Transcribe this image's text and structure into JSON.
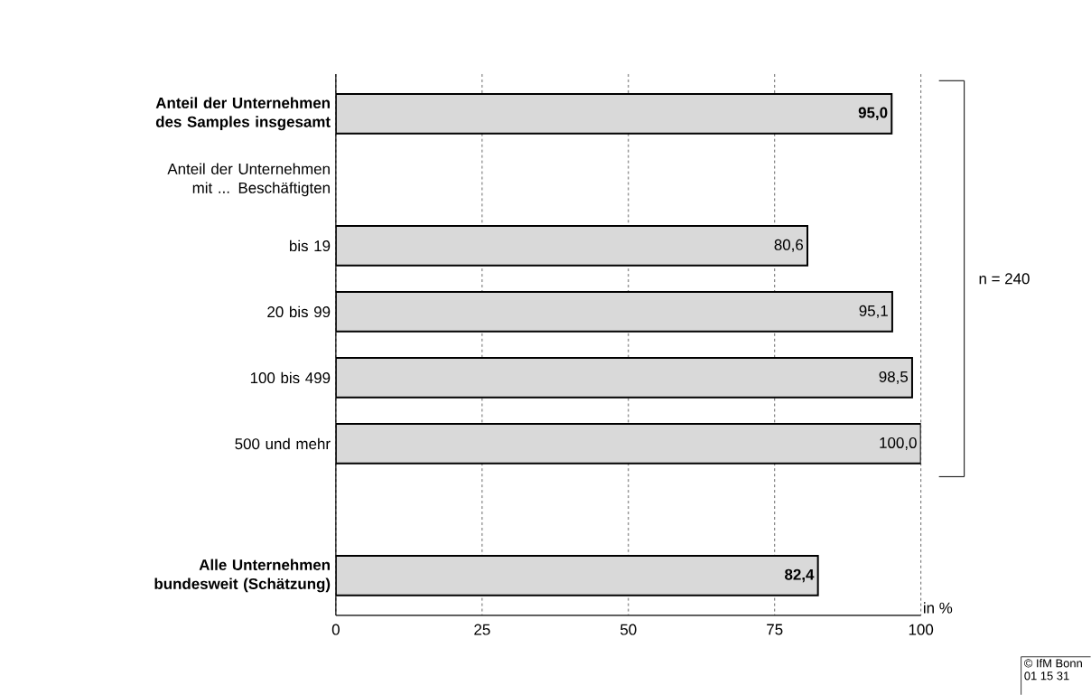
{
  "chart_data": {
    "type": "bar",
    "orientation": "horizontal",
    "categories": [
      "**Anteil der Unternehmen des Samples insgesamt**",
      "Anteil der Unternehmen mit ... Beschäftigten",
      "bis 19",
      "20 bis 99",
      "100 bis 499",
      "500 und mehr",
      null,
      "**Alle Unternehmen bundesweit (Schätzung)**"
    ],
    "values": [
      95.0,
      null,
      80.6,
      95.1,
      98.5,
      100.0,
      null,
      82.4
    ],
    "value_labels": [
      "**95,0**",
      null,
      "80,6",
      "95,1",
      "98,5",
      "100,0",
      null,
      "**82,4**"
    ],
    "color": "#d9d9d9",
    "xlabel": "in %",
    "xlim": [
      0,
      100
    ],
    "xticks": [
      0,
      25,
      50,
      75,
      100
    ],
    "grid": "x",
    "annotations": [
      "n = 240",
      "© IfM Bonn",
      "01 15 31"
    ]
  }
}
